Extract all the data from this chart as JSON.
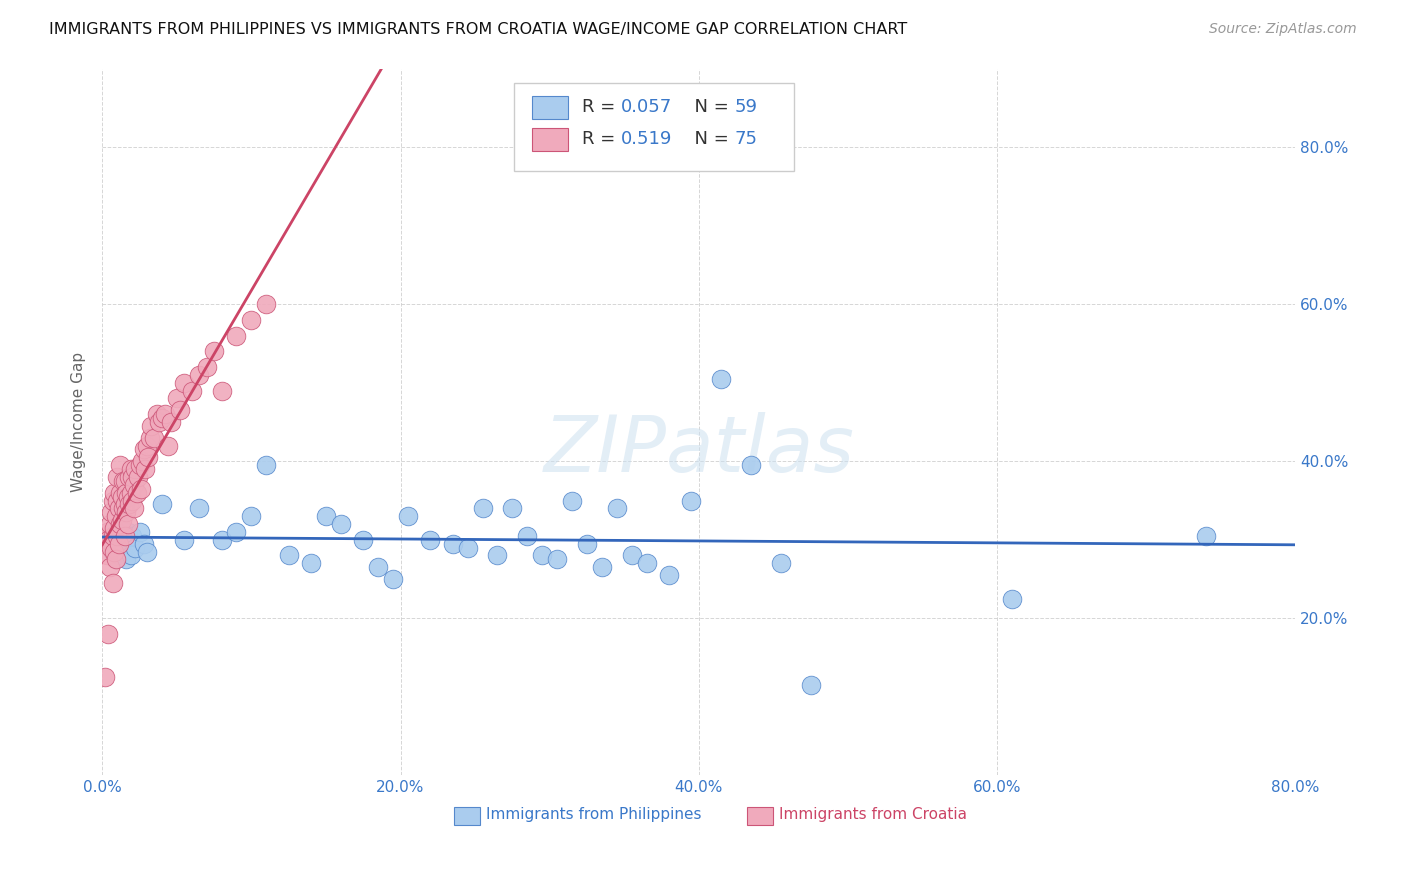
{
  "title": "IMMIGRANTS FROM PHILIPPINES VS IMMIGRANTS FROM CROATIA WAGE/INCOME GAP CORRELATION CHART",
  "source": "Source: ZipAtlas.com",
  "ylabel": "Wage/Income Gap",
  "xlim": [
    0.0,
    0.8
  ],
  "ylim": [
    0.0,
    0.9
  ],
  "philippines_color": "#aaccee",
  "philippines_edge": "#5588cc",
  "croatia_color": "#f0aabc",
  "croatia_edge": "#cc5577",
  "line_philippines_color": "#3366bb",
  "line_croatia_color": "#cc4466",
  "legend_R_philippines": "0.057",
  "legend_N_philippines": "59",
  "legend_R_croatia": "0.519",
  "legend_N_croatia": "75",
  "watermark": "ZIPatlas",
  "philippines_x": [
    0.004,
    0.006,
    0.007,
    0.008,
    0.009,
    0.01,
    0.01,
    0.011,
    0.012,
    0.013,
    0.014,
    0.015,
    0.016,
    0.017,
    0.018,
    0.019,
    0.02,
    0.022,
    0.025,
    0.028,
    0.03,
    0.04,
    0.055,
    0.065,
    0.08,
    0.09,
    0.1,
    0.11,
    0.125,
    0.14,
    0.15,
    0.16,
    0.175,
    0.185,
    0.195,
    0.205,
    0.22,
    0.235,
    0.245,
    0.255,
    0.265,
    0.275,
    0.285,
    0.295,
    0.305,
    0.315,
    0.325,
    0.335,
    0.345,
    0.355,
    0.365,
    0.38,
    0.395,
    0.415,
    0.435,
    0.455,
    0.475,
    0.61,
    0.74
  ],
  "philippines_y": [
    0.295,
    0.3,
    0.285,
    0.31,
    0.275,
    0.29,
    0.305,
    0.28,
    0.32,
    0.295,
    0.285,
    0.3,
    0.275,
    0.31,
    0.295,
    0.28,
    0.305,
    0.29,
    0.31,
    0.295,
    0.285,
    0.345,
    0.3,
    0.34,
    0.3,
    0.31,
    0.33,
    0.395,
    0.28,
    0.27,
    0.33,
    0.32,
    0.3,
    0.265,
    0.25,
    0.33,
    0.3,
    0.295,
    0.29,
    0.34,
    0.28,
    0.34,
    0.305,
    0.28,
    0.275,
    0.35,
    0.295,
    0.265,
    0.34,
    0.28,
    0.27,
    0.255,
    0.35,
    0.505,
    0.395,
    0.27,
    0.115,
    0.225,
    0.305
  ],
  "croatia_x": [
    0.001,
    0.002,
    0.003,
    0.003,
    0.004,
    0.004,
    0.005,
    0.005,
    0.006,
    0.006,
    0.007,
    0.007,
    0.007,
    0.008,
    0.008,
    0.008,
    0.009,
    0.009,
    0.01,
    0.01,
    0.01,
    0.011,
    0.011,
    0.012,
    0.012,
    0.012,
    0.013,
    0.013,
    0.014,
    0.014,
    0.015,
    0.015,
    0.015,
    0.016,
    0.016,
    0.017,
    0.017,
    0.018,
    0.018,
    0.019,
    0.019,
    0.02,
    0.02,
    0.021,
    0.021,
    0.022,
    0.023,
    0.024,
    0.025,
    0.026,
    0.027,
    0.028,
    0.029,
    0.03,
    0.031,
    0.032,
    0.033,
    0.035,
    0.037,
    0.038,
    0.04,
    0.042,
    0.044,
    0.046,
    0.05,
    0.052,
    0.055,
    0.06,
    0.065,
    0.07,
    0.075,
    0.08,
    0.09,
    0.1,
    0.11
  ],
  "croatia_y": [
    0.295,
    0.125,
    0.28,
    0.31,
    0.18,
    0.3,
    0.265,
    0.32,
    0.29,
    0.335,
    0.245,
    0.305,
    0.35,
    0.285,
    0.315,
    0.36,
    0.275,
    0.33,
    0.305,
    0.35,
    0.38,
    0.295,
    0.34,
    0.32,
    0.36,
    0.395,
    0.325,
    0.355,
    0.34,
    0.375,
    0.305,
    0.345,
    0.375,
    0.335,
    0.36,
    0.32,
    0.355,
    0.345,
    0.38,
    0.36,
    0.39,
    0.35,
    0.38,
    0.34,
    0.37,
    0.39,
    0.36,
    0.38,
    0.395,
    0.365,
    0.4,
    0.415,
    0.39,
    0.42,
    0.405,
    0.43,
    0.445,
    0.43,
    0.46,
    0.45,
    0.455,
    0.46,
    0.42,
    0.45,
    0.48,
    0.465,
    0.5,
    0.49,
    0.51,
    0.52,
    0.54,
    0.49,
    0.56,
    0.58,
    0.6
  ]
}
